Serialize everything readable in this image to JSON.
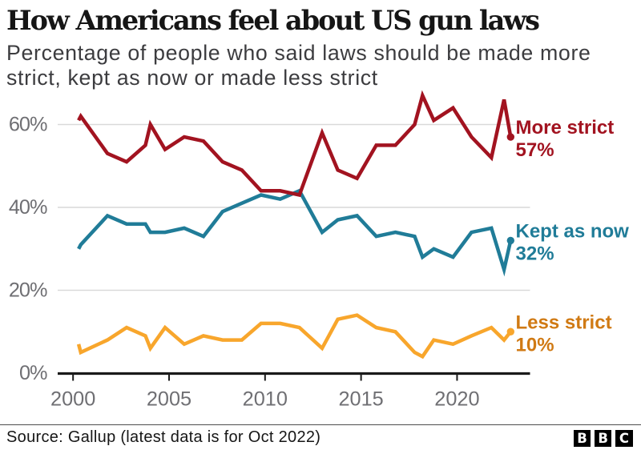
{
  "title": "How Americans feel about US gun laws",
  "subtitle": "Percentage of people who said laws should be made more strict, kept as now or made less strict",
  "footer": {
    "source": "Source: Gallup (latest data is for Oct 2022)",
    "logo_letters": [
      "B",
      "B",
      "C"
    ]
  },
  "colors": {
    "more_strict": "#a21320",
    "kept_as_now": "#207c98",
    "less_strict_line": "#f8a62c",
    "less_strict_text": "#d07a14",
    "gridline": "#d9d9d9",
    "axis": "#1a1a1a",
    "tick_label": "#6f6f73",
    "title_text": "#141414",
    "subtitle_text": "#3c3c3f"
  },
  "chart_data": {
    "type": "line",
    "title": "How Americans feel about US gun laws",
    "xlabel": "",
    "ylabel": "",
    "xlim": [
      1999.2,
      2023.8
    ],
    "ylim": [
      0,
      70
    ],
    "grid": true,
    "xticks": [
      2000,
      2005,
      2010,
      2015,
      2020
    ],
    "xtick_labels": [
      "2000",
      "2005",
      "2010",
      "2015",
      "2020"
    ],
    "yticks": [
      0,
      20,
      40,
      60
    ],
    "ytick_labels": [
      "0%",
      "20%",
      "40%",
      "60%"
    ],
    "x": [
      2000.29,
      2000.4,
      2001.79,
      2002.79,
      2003.77,
      2004.03,
      2004.79,
      2005.79,
      2006.79,
      2007.79,
      2008.79,
      2009.79,
      2010.79,
      2011.79,
      2012.97,
      2013.79,
      2014.79,
      2015.79,
      2016.79,
      2017.79,
      2018.2,
      2018.79,
      2019.79,
      2020.75,
      2021.79,
      2022.45,
      2022.79
    ],
    "series": [
      {
        "name": "More strict",
        "end_label": "More strict",
        "end_value_label": "57%",
        "color": "#a21320",
        "label_color": "#a21320",
        "values": [
          61,
          62,
          53,
          51,
          55,
          60,
          54,
          57,
          56,
          51,
          49,
          44,
          44,
          43,
          58,
          49,
          47,
          55,
          55,
          60,
          67,
          61,
          64,
          57,
          52,
          66,
          57
        ]
      },
      {
        "name": "Kept as now",
        "end_label": "Kept as now",
        "end_value_label": "32%",
        "color": "#207c98",
        "label_color": "#207c98",
        "values": [
          30,
          31,
          38,
          36,
          36,
          34,
          34,
          35,
          33,
          39,
          41,
          43,
          42,
          44,
          34,
          37,
          38,
          33,
          34,
          33,
          28,
          30,
          28,
          34,
          35,
          25,
          32
        ]
      },
      {
        "name": "Less strict",
        "end_label": "Less strict",
        "end_value_label": "10%",
        "color": "#f8a62c",
        "label_color": "#d07a14",
        "values": [
          7,
          5,
          8,
          11,
          9,
          6,
          11,
          7,
          9,
          8,
          8,
          12,
          12,
          11,
          6,
          13,
          14,
          11,
          10,
          5,
          4,
          8,
          7,
          9,
          11,
          8,
          10
        ]
      }
    ],
    "legend_position": "right-end-of-line"
  }
}
